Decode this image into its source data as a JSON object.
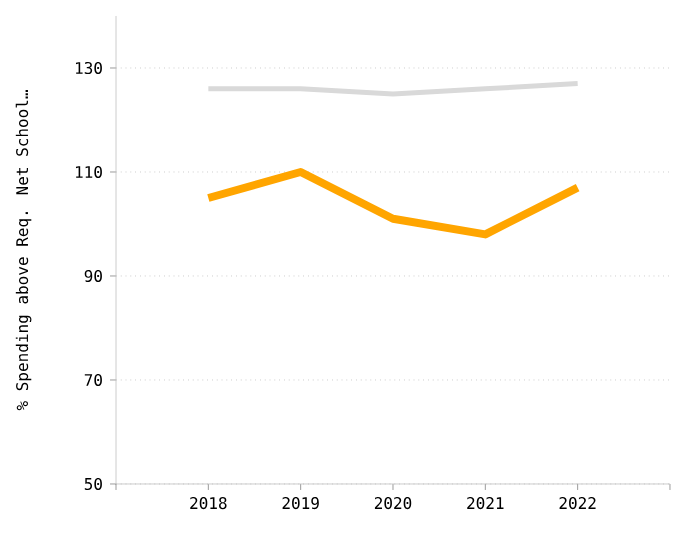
{
  "chart_data": {
    "type": "line",
    "ylabel": "% Spending above Req. Net School…",
    "x": [
      2018,
      2019,
      2020,
      2021,
      2022
    ],
    "xlim": [
      2017,
      2023
    ],
    "xticks": [
      {
        "value": 2017,
        "label": null
      },
      2018,
      2019,
      2020,
      2021,
      2022,
      {
        "value": 2023,
        "label": null
      }
    ],
    "ylim": [
      50,
      140
    ],
    "yticks": [
      50,
      70,
      90,
      110,
      130
    ],
    "grid": "y",
    "marker": "none",
    "line_style": "solid",
    "series": [
      {
        "color": "#d9d9d9",
        "values": [
          126,
          126,
          125,
          126,
          127
        ]
      },
      {
        "color": "#ffa500",
        "values": [
          105,
          110,
          101,
          98,
          107
        ]
      }
    ]
  }
}
